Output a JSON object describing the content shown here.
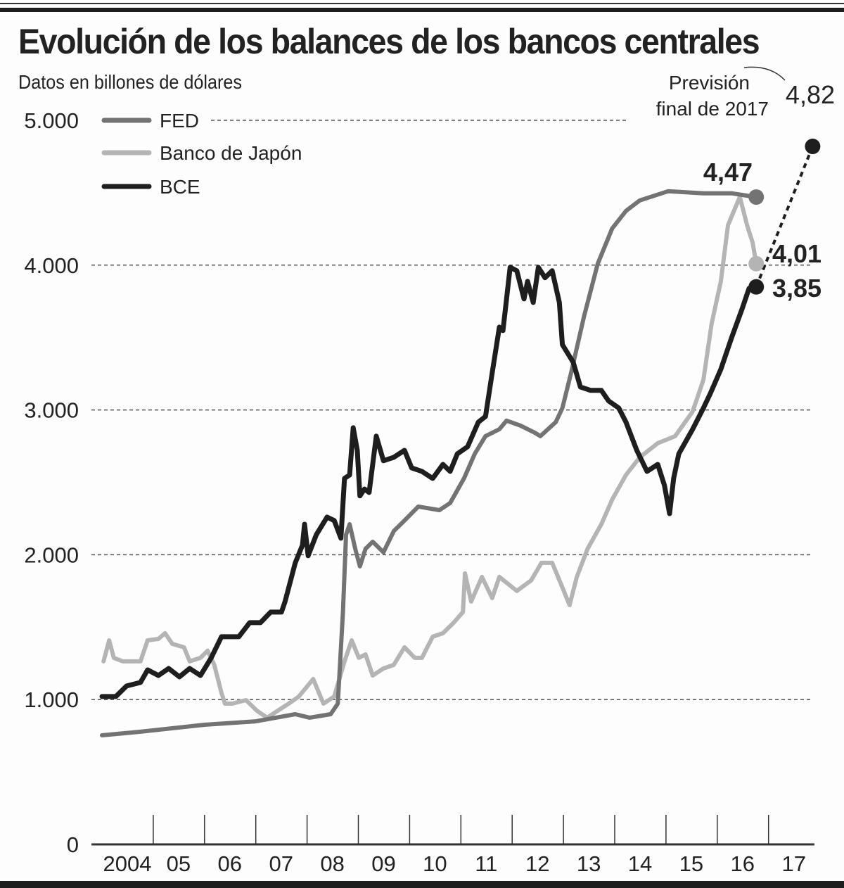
{
  "chart_data": {
    "type": "line",
    "title": "Evolución de los balances de los bancos centrales",
    "subtitle": "Datos en billones de dólares",
    "ylim": [
      0,
      5000
    ],
    "yticks": [
      0,
      1000,
      2000,
      3000,
      4000,
      5000
    ],
    "ytick_labels": [
      "0",
      "1.000",
      "2.000",
      "3.000",
      "4.000",
      "5.000"
    ],
    "xlim": [
      2004,
      2018
    ],
    "xtick_labels": [
      "2004",
      "05",
      "06",
      "07",
      "08",
      "09",
      "10",
      "11",
      "12",
      "13",
      "14",
      "15",
      "16",
      "17"
    ],
    "grid": "horizontal dashed",
    "legend_position": "top-left",
    "series": [
      {
        "name": "FED",
        "color": "#737373",
        "points": [
          [
            2004.0,
            753
          ],
          [
            2004.75,
            778
          ],
          [
            2006.0,
            826
          ],
          [
            2007.0,
            850
          ],
          [
            2007.77,
            899
          ],
          [
            2008.05,
            875
          ],
          [
            2008.46,
            899
          ],
          [
            2008.6,
            972
          ],
          [
            2008.7,
            1604
          ],
          [
            2008.76,
            2138
          ],
          [
            2008.83,
            2211
          ],
          [
            2008.94,
            2041
          ],
          [
            2009.03,
            1920
          ],
          [
            2009.14,
            2041
          ],
          [
            2009.28,
            2090
          ],
          [
            2009.49,
            2017
          ],
          [
            2009.69,
            2163
          ],
          [
            2009.9,
            2236
          ],
          [
            2010.17,
            2333
          ],
          [
            2010.58,
            2308
          ],
          [
            2010.79,
            2357
          ],
          [
            2011.06,
            2527
          ],
          [
            2011.27,
            2697
          ],
          [
            2011.48,
            2819
          ],
          [
            2011.75,
            2867
          ],
          [
            2011.89,
            2926
          ],
          [
            2012.16,
            2892
          ],
          [
            2012.44,
            2843
          ],
          [
            2012.55,
            2819
          ],
          [
            2012.85,
            2916
          ],
          [
            2012.98,
            3013
          ],
          [
            2013.15,
            3256
          ],
          [
            2013.4,
            3645
          ],
          [
            2013.67,
            4010
          ],
          [
            2013.95,
            4253
          ],
          [
            2014.22,
            4374
          ],
          [
            2014.49,
            4447
          ],
          [
            2015.04,
            4510
          ],
          [
            2015.73,
            4496
          ],
          [
            2016.28,
            4496
          ],
          [
            2016.76,
            4470
          ]
        ]
      },
      {
        "name": "Banco de Japón",
        "color": "#b4b4b4",
        "points": [
          [
            2004.03,
            1264
          ],
          [
            2004.14,
            1409
          ],
          [
            2004.23,
            1288
          ],
          [
            2004.41,
            1264
          ],
          [
            2004.75,
            1264
          ],
          [
            2004.89,
            1409
          ],
          [
            2005.1,
            1419
          ],
          [
            2005.23,
            1458
          ],
          [
            2005.37,
            1385
          ],
          [
            2005.6,
            1361
          ],
          [
            2005.71,
            1264
          ],
          [
            2005.92,
            1288
          ],
          [
            2006.06,
            1337
          ],
          [
            2006.19,
            1239
          ],
          [
            2006.33,
            1045
          ],
          [
            2006.4,
            972
          ],
          [
            2006.54,
            972
          ],
          [
            2006.81,
            996
          ],
          [
            2007.02,
            923
          ],
          [
            2007.22,
            875
          ],
          [
            2007.43,
            923
          ],
          [
            2007.64,
            972
          ],
          [
            2007.84,
            1021
          ],
          [
            2008.12,
            1142
          ],
          [
            2008.32,
            972
          ],
          [
            2008.53,
            1021
          ],
          [
            2008.73,
            1264
          ],
          [
            2008.87,
            1409
          ],
          [
            2009.01,
            1288
          ],
          [
            2009.14,
            1312
          ],
          [
            2009.28,
            1166
          ],
          [
            2009.49,
            1215
          ],
          [
            2009.69,
            1239
          ],
          [
            2009.9,
            1361
          ],
          [
            2010.1,
            1288
          ],
          [
            2010.24,
            1288
          ],
          [
            2010.45,
            1434
          ],
          [
            2010.65,
            1458
          ],
          [
            2010.86,
            1531
          ],
          [
            2011.04,
            1604
          ],
          [
            2011.08,
            1871
          ],
          [
            2011.2,
            1677
          ],
          [
            2011.41,
            1847
          ],
          [
            2011.61,
            1701
          ],
          [
            2011.75,
            1847
          ],
          [
            2012.09,
            1750
          ],
          [
            2012.37,
            1823
          ],
          [
            2012.57,
            1944
          ],
          [
            2012.78,
            1944
          ],
          [
            2012.98,
            1774
          ],
          [
            2013.12,
            1652
          ],
          [
            2013.26,
            1847
          ],
          [
            2013.47,
            2041
          ],
          [
            2013.74,
            2211
          ],
          [
            2013.95,
            2381
          ],
          [
            2014.22,
            2551
          ],
          [
            2014.49,
            2673
          ],
          [
            2014.84,
            2770
          ],
          [
            2015.18,
            2819
          ],
          [
            2015.52,
            2989
          ],
          [
            2015.73,
            3208
          ],
          [
            2015.89,
            3596
          ],
          [
            2016.07,
            3888
          ],
          [
            2016.21,
            4277
          ],
          [
            2016.44,
            4471
          ],
          [
            2016.58,
            4277
          ],
          [
            2016.69,
            4155
          ],
          [
            2016.76,
            4010
          ]
        ]
      },
      {
        "name": "BCE",
        "color": "#1e1e1e",
        "points": [
          [
            2004.0,
            1021
          ],
          [
            2004.27,
            1021
          ],
          [
            2004.48,
            1094
          ],
          [
            2004.75,
            1118
          ],
          [
            2004.89,
            1205
          ],
          [
            2005.1,
            1166
          ],
          [
            2005.3,
            1215
          ],
          [
            2005.51,
            1157
          ],
          [
            2005.71,
            1215
          ],
          [
            2005.92,
            1166
          ],
          [
            2006.13,
            1288
          ],
          [
            2006.33,
            1434
          ],
          [
            2006.67,
            1434
          ],
          [
            2006.88,
            1531
          ],
          [
            2007.09,
            1531
          ],
          [
            2007.29,
            1604
          ],
          [
            2007.5,
            1604
          ],
          [
            2007.57,
            1677
          ],
          [
            2007.77,
            1944
          ],
          [
            2007.91,
            2066
          ],
          [
            2007.95,
            2211
          ],
          [
            2008.02,
            1993
          ],
          [
            2008.18,
            2138
          ],
          [
            2008.39,
            2260
          ],
          [
            2008.53,
            2236
          ],
          [
            2008.66,
            2114
          ],
          [
            2008.73,
            2527
          ],
          [
            2008.83,
            2551
          ],
          [
            2008.9,
            2877
          ],
          [
            2008.98,
            2721
          ],
          [
            2009.03,
            2406
          ],
          [
            2009.12,
            2454
          ],
          [
            2009.21,
            2430
          ],
          [
            2009.35,
            2819
          ],
          [
            2009.49,
            2649
          ],
          [
            2009.69,
            2673
          ],
          [
            2009.9,
            2721
          ],
          [
            2010.04,
            2600
          ],
          [
            2010.24,
            2576
          ],
          [
            2010.45,
            2527
          ],
          [
            2010.65,
            2624
          ],
          [
            2010.79,
            2576
          ],
          [
            2010.93,
            2697
          ],
          [
            2011.13,
            2746
          ],
          [
            2011.34,
            2916
          ],
          [
            2011.48,
            2955
          ],
          [
            2011.61,
            3256
          ],
          [
            2011.75,
            3572
          ],
          [
            2011.82,
            3548
          ],
          [
            2011.96,
            3985
          ],
          [
            2012.09,
            3961
          ],
          [
            2012.23,
            3767
          ],
          [
            2012.3,
            3888
          ],
          [
            2012.41,
            3742
          ],
          [
            2012.51,
            3985
          ],
          [
            2012.64,
            3913
          ],
          [
            2012.78,
            3961
          ],
          [
            2012.92,
            3742
          ],
          [
            2012.98,
            3451
          ],
          [
            2013.19,
            3329
          ],
          [
            2013.33,
            3159
          ],
          [
            2013.53,
            3135
          ],
          [
            2013.74,
            3135
          ],
          [
            2013.88,
            3062
          ],
          [
            2014.08,
            3013
          ],
          [
            2014.22,
            2916
          ],
          [
            2014.43,
            2722
          ],
          [
            2014.63,
            2576
          ],
          [
            2014.84,
            2624
          ],
          [
            2014.97,
            2479
          ],
          [
            2015.07,
            2284
          ],
          [
            2015.15,
            2527
          ],
          [
            2015.25,
            2697
          ],
          [
            2015.52,
            2867
          ],
          [
            2015.73,
            3013
          ],
          [
            2015.86,
            3110
          ],
          [
            2016.07,
            3281
          ],
          [
            2016.28,
            3499
          ],
          [
            2016.48,
            3694
          ],
          [
            2016.62,
            3839
          ],
          [
            2016.76,
            3850
          ]
        ]
      }
    ],
    "end_labels": [
      {
        "series": "FED",
        "value": 4470,
        "label": "4,47"
      },
      {
        "series": "Banco de Japón",
        "value": 4010,
        "label": "4,01"
      },
      {
        "series": "BCE",
        "value": 3850,
        "label": "3,85"
      }
    ],
    "forecast": {
      "series": "BCE",
      "year": 2017.86,
      "value": 4820,
      "label": "4,82",
      "note_line1": "Previsión",
      "note_line2": "final de 2017"
    }
  }
}
